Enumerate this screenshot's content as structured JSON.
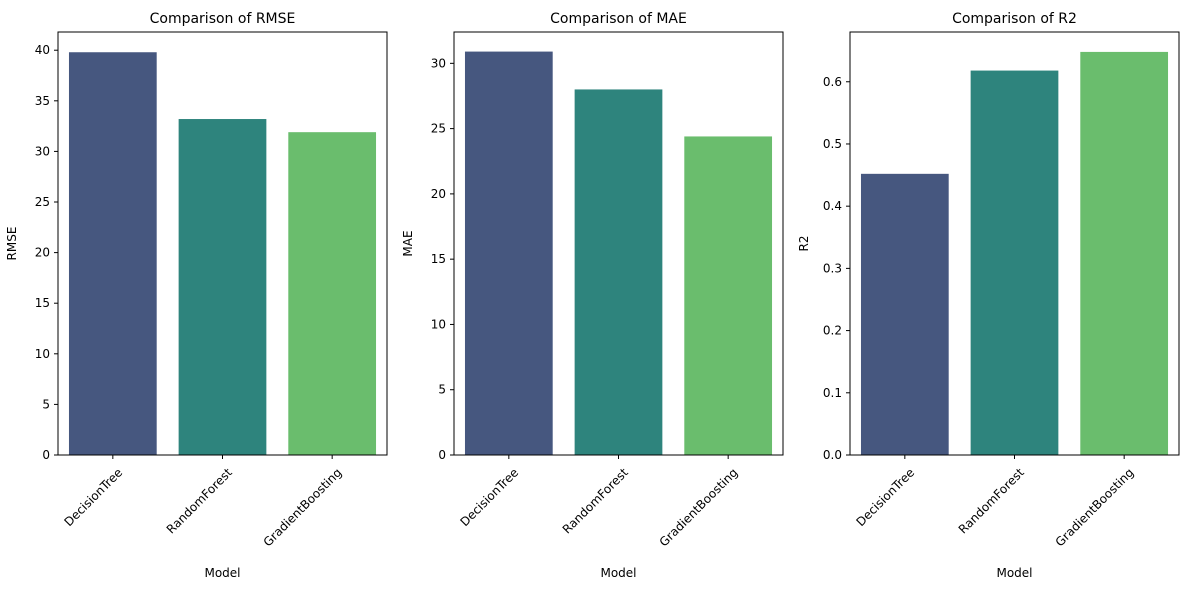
{
  "chart_data": [
    {
      "type": "bar",
      "title": "Comparison of RMSE",
      "xlabel": "Model",
      "ylabel": "RMSE",
      "categories": [
        "DecisionTree",
        "RandomForest",
        "GradientBoosting"
      ],
      "values": [
        39.8,
        33.2,
        31.9
      ],
      "ylim": [
        0,
        41.8
      ],
      "yticks": [
        0,
        5,
        10,
        15,
        20,
        25,
        30,
        35,
        40
      ],
      "tick_format_decimals": 0,
      "grid": false,
      "legend": "none"
    },
    {
      "type": "bar",
      "title": "Comparison of MAE",
      "xlabel": "Model",
      "ylabel": "MAE",
      "categories": [
        "DecisionTree",
        "RandomForest",
        "GradientBoosting"
      ],
      "values": [
        30.9,
        28.0,
        24.4
      ],
      "ylim": [
        0,
        32.4
      ],
      "yticks": [
        0,
        5,
        10,
        15,
        20,
        25,
        30
      ],
      "tick_format_decimals": 0,
      "grid": false,
      "legend": "none"
    },
    {
      "type": "bar",
      "title": "Comparison of R2",
      "xlabel": "Model",
      "ylabel": "R2",
      "categories": [
        "DecisionTree",
        "RandomForest",
        "GradientBoosting"
      ],
      "values": [
        0.452,
        0.618,
        0.648
      ],
      "ylim": [
        0,
        0.68
      ],
      "yticks": [
        0.0,
        0.1,
        0.2,
        0.3,
        0.4,
        0.5,
        0.6
      ],
      "tick_format_decimals": 1,
      "grid": false,
      "legend": "none"
    }
  ],
  "colors": {
    "bars": [
      "#46577f",
      "#2e847d",
      "#6abd6d"
    ],
    "frame": "#000000",
    "background": "#ffffff"
  }
}
